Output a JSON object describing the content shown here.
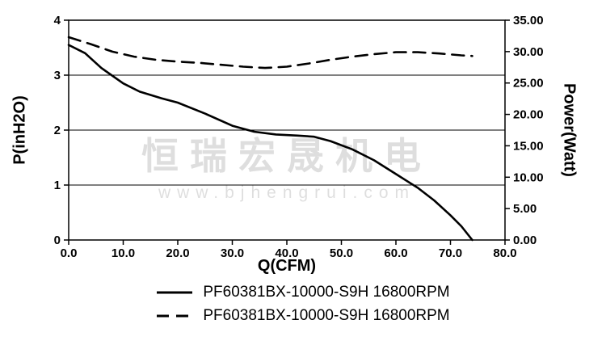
{
  "chart_data": {
    "type": "line",
    "title": "",
    "xlabel": "Q(CFM)",
    "ylabel_left": "P(inH2O)",
    "ylabel_right": "Power(Watt)",
    "xlim": [
      0,
      80
    ],
    "ylim_left": [
      0,
      4
    ],
    "ylim_right": [
      0,
      35
    ],
    "x_ticks": [
      "0.0",
      "10.0",
      "20.0",
      "30.0",
      "40.0",
      "50.0",
      "60.0",
      "70.0",
      "80.0"
    ],
    "y_ticks_left": [
      "0",
      "1",
      "2",
      "3",
      "4"
    ],
    "y_ticks_right": [
      "0.00",
      "5.00",
      "10.00",
      "15.00",
      "20.00",
      "25.00",
      "30.00",
      "35.00"
    ],
    "gridlines_left": [
      1,
      2,
      3
    ],
    "grid": "horizontal-only",
    "legend_position": "bottom",
    "series": [
      {
        "name": "PF60381BX-10000-S9H 16800RPM",
        "axis": "left",
        "unit": "inH2O",
        "style": "solid",
        "x": [
          0,
          3,
          6,
          10,
          13,
          17,
          20,
          25,
          30,
          34,
          38,
          42,
          45,
          48,
          52,
          56,
          60,
          64,
          67,
          70,
          72,
          74
        ],
        "y": [
          3.55,
          3.4,
          3.13,
          2.85,
          2.7,
          2.58,
          2.5,
          2.3,
          2.08,
          1.97,
          1.92,
          1.9,
          1.88,
          1.8,
          1.65,
          1.45,
          1.2,
          0.95,
          0.72,
          0.45,
          0.25,
          0
        ]
      },
      {
        "name": "PF60381BX-10000-S9H 16800RPM",
        "axis": "right",
        "unit": "Watt",
        "style": "dashed",
        "x": [
          0,
          4,
          8,
          12,
          16,
          20,
          24,
          28,
          32,
          36,
          40,
          44,
          48,
          52,
          56,
          60,
          64,
          68,
          72,
          74
        ],
        "y": [
          32.3,
          31.2,
          30.0,
          29.2,
          28.7,
          28.4,
          28.2,
          27.9,
          27.6,
          27.4,
          27.6,
          28.1,
          28.7,
          29.2,
          29.6,
          29.9,
          29.9,
          29.7,
          29.4,
          29.3
        ]
      }
    ]
  },
  "legend": [
    {
      "label": "PF60381BX-10000-S9H 16800RPM",
      "style": "solid"
    },
    {
      "label": "PF60381BX-10000-S9H 16800RPM",
      "style": "dashed"
    }
  ],
  "watermark": {
    "title": "恒瑞宏晟机电",
    "url": "www.bjhengrui.com"
  }
}
